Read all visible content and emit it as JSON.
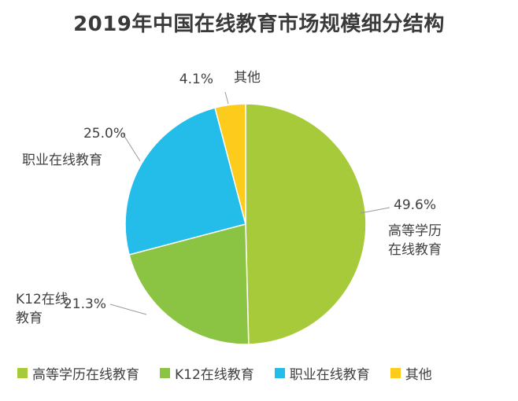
{
  "chart_data": {
    "type": "pie",
    "title": "2019年中国在线教育市场规模细分结构",
    "slices": [
      {
        "name": "高等学历在线教育",
        "label_lines": [
          "高等学历",
          "在线教育"
        ],
        "value_label": "49.6%",
        "value": 49.6,
        "color": "#a6ca3a"
      },
      {
        "name": "K12在线教育",
        "label_lines": [
          "K12在线",
          "教育"
        ],
        "value_label": "21.3%",
        "value": 21.3,
        "color": "#8bc443"
      },
      {
        "name": "职业在线教育",
        "label_lines": [
          "职业在线教育"
        ],
        "value_label": "25.0%",
        "value": 25.0,
        "color": "#24bce9"
      },
      {
        "name": "其他",
        "label_lines": [
          "其他"
        ],
        "value_label": "4.1%",
        "value": 4.1,
        "color": "#fccb1b"
      }
    ],
    "legend_position": "bottom"
  }
}
